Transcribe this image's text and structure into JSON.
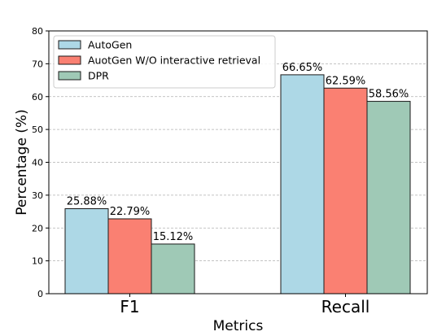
{
  "chart_data": {
    "type": "bar",
    "categories": [
      "F1",
      "Recall"
    ],
    "series": [
      {
        "name": "AutoGen",
        "values": [
          25.88,
          66.65
        ],
        "labels": [
          "25.88%",
          "66.65%"
        ],
        "color": "#add8e6"
      },
      {
        "name": "AuotGen W/O interactive retrieval",
        "values": [
          22.79,
          62.59
        ],
        "labels": [
          "22.79%",
          "62.59%"
        ],
        "color": "#fa8072"
      },
      {
        "name": "DPR",
        "values": [
          15.12,
          58.56
        ],
        "labels": [
          "15.12%",
          "58.56%"
        ],
        "color": "#9fc9b6"
      }
    ],
    "xlabel": "Metrics",
    "ylabel": "Percentage (%)",
    "ylim": [
      0,
      80
    ],
    "yticks": [
      "0",
      "10",
      "20",
      "30",
      "40",
      "50",
      "60",
      "70",
      "80"
    ],
    "grid": "horizontal-dashed",
    "legend_position": "top-left"
  }
}
